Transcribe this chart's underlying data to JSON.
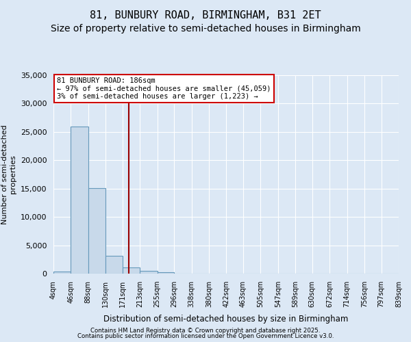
{
  "title1": "81, BUNBURY ROAD, BIRMINGHAM, B31 2ET",
  "title2": "Size of property relative to semi-detached houses in Birmingham",
  "xlabel": "Distribution of semi-detached houses by size in Birmingham",
  "ylabel": "Number of semi-detached\nproperties",
  "bin_edges": [
    4,
    46,
    88,
    130,
    171,
    213,
    255,
    296,
    338,
    380,
    422,
    463,
    505,
    547,
    589,
    630,
    672,
    714,
    756,
    797,
    839
  ],
  "counts": [
    400,
    26000,
    15100,
    3100,
    1100,
    500,
    300,
    50,
    10,
    0,
    0,
    0,
    0,
    0,
    0,
    0,
    0,
    0,
    0,
    0
  ],
  "bar_color": "#c8d9ea",
  "bar_edge_color": "#6699bb",
  "ylim": [
    0,
    35000
  ],
  "yticks": [
    0,
    5000,
    10000,
    15000,
    20000,
    25000,
    30000,
    35000
  ],
  "property_size": 186,
  "red_line_color": "#990000",
  "annotation_title": "81 BUNBURY ROAD: 186sqm",
  "annotation_line1": "← 97% of semi-detached houses are smaller (45,059)",
  "annotation_line2": "3% of semi-detached houses are larger (1,223) →",
  "footer1": "Contains HM Land Registry data © Crown copyright and database right 2025.",
  "footer2": "Contains public sector information licensed under the Open Government Licence v3.0.",
  "bg_color": "#dce8f5",
  "title1_fontsize": 11,
  "title2_fontsize": 10
}
